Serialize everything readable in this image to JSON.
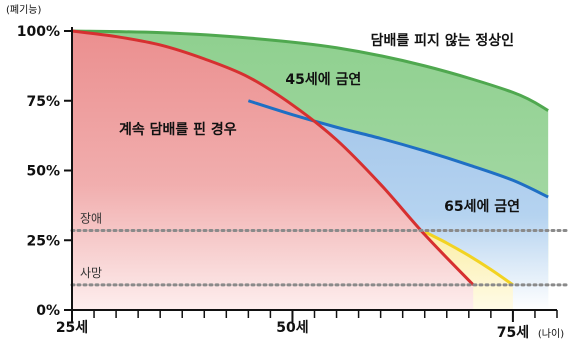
{
  "chart_data": {
    "type": "area",
    "title": "",
    "ylabel": "(폐기능)",
    "xlabel_unit": "(나이)",
    "xlim": [
      25,
      80
    ],
    "ylim": [
      0,
      100
    ],
    "y_ticks": [
      {
        "value": 0,
        "label": "0%"
      },
      {
        "value": 25,
        "label": "25%"
      },
      {
        "value": 50,
        "label": "50%"
      },
      {
        "value": 75,
        "label": "75%"
      },
      {
        "value": 100,
        "label": "100%"
      }
    ],
    "x_ticks_minor": [
      27.5,
      30,
      32.5,
      35,
      37.5,
      40,
      42.5,
      45,
      47.5,
      50,
      52.5,
      55,
      57.5,
      60,
      62.5,
      65,
      67.5,
      70,
      72.5,
      75,
      77.5,
      80
    ],
    "x_labels": [
      {
        "value": 25,
        "label": "25세"
      },
      {
        "value": 50,
        "label": "50세"
      },
      {
        "value": 75,
        "label": "75세"
      }
    ],
    "reference_lines": [
      {
        "name": "장애",
        "y": 28.5
      },
      {
        "name": "사망",
        "y": 9
      }
    ],
    "series": [
      {
        "name": "담배를 피지 않는 정상인",
        "color": "#8fd08f",
        "line_color": "#4fa84f",
        "x": [
          25,
          35,
          45,
          55,
          65,
          75,
          79
        ],
        "y": [
          100,
          99.4,
          97.5,
          94,
          87.5,
          78,
          71.5
        ]
      },
      {
        "name": "45세에 금연",
        "color": "#a9cbec",
        "line_color": "#1f6fc4",
        "x": [
          45,
          50,
          55,
          60,
          65,
          70,
          75,
          79
        ],
        "y": [
          75,
          70,
          65.5,
          61.5,
          57,
          52,
          46.5,
          40.5
        ]
      },
      {
        "name": "65세에 금연",
        "color": "#fbf0b3",
        "line_color": "#f2d322",
        "x": [
          65,
          67.5,
          70,
          72.5,
          75
        ],
        "y": [
          28,
          24,
          19.5,
          14.5,
          9
        ]
      },
      {
        "name": "계속 담배를 핀 경우",
        "color": "#ec9a9a",
        "line_color": "#d63030",
        "x": [
          25,
          30,
          35,
          40,
          45,
          50,
          55,
          60,
          65,
          70.5
        ],
        "y": [
          100,
          98,
          95,
          90,
          83.5,
          73.5,
          61,
          45,
          27,
          9
        ]
      }
    ],
    "annotations": [
      {
        "text": "담배를 피지 않는 정상인",
        "x": 67,
        "y": 95
      },
      {
        "text": "45세에 금연",
        "x": 53.5,
        "y": 81
      },
      {
        "text": "계속 담배를 핀 경우",
        "x": 37,
        "y": 63
      },
      {
        "text": "65세에 금연",
        "x": 71.5,
        "y": 35.5
      }
    ]
  }
}
